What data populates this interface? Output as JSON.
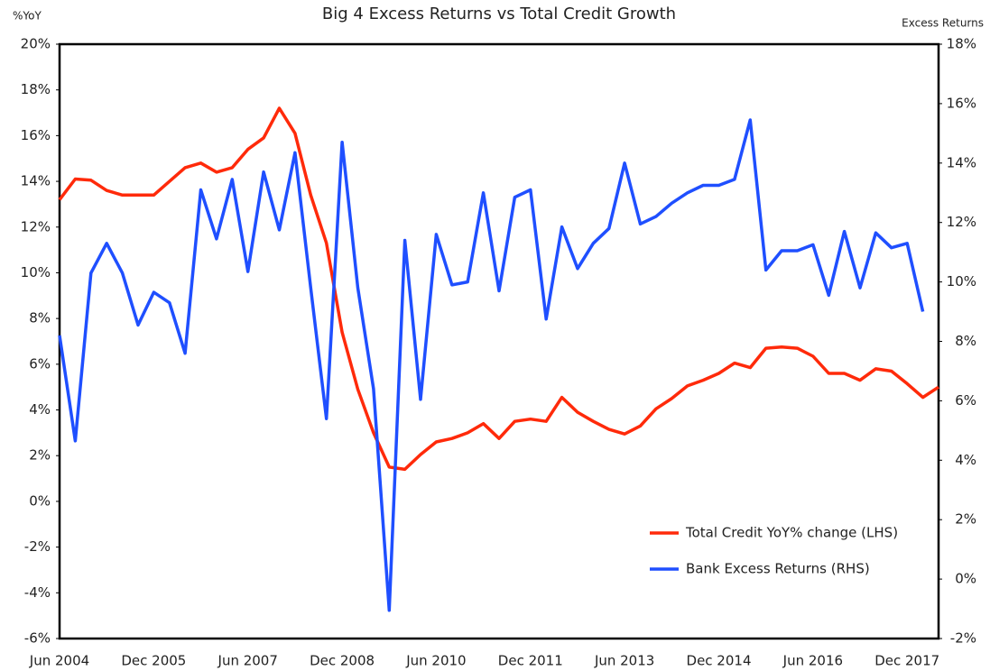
{
  "chart_data": {
    "type": "line",
    "title": "Big 4 Excess Returns vs Total Credit Growth",
    "y_label": "%YoY",
    "y2_label": "Excess Returns",
    "categories": [
      "Jun 2004",
      null,
      null,
      null,
      null,
      null,
      "Dec 2005",
      null,
      null,
      null,
      null,
      null,
      "Jun 2007",
      null,
      null,
      null,
      null,
      null,
      "Dec 2008",
      null,
      null,
      null,
      null,
      null,
      "Jun 2010",
      null,
      null,
      null,
      null,
      null,
      "Dec 2011",
      null,
      null,
      null,
      null,
      null,
      "Jun 2013",
      null,
      null,
      null,
      null,
      null,
      "Dec 2014",
      null,
      null,
      null,
      null,
      null,
      "Jun 2016",
      null,
      null,
      null,
      null,
      null,
      "Dec 2017",
      null,
      null
    ],
    "series": [
      {
        "name": "Total Credit YoY% change (LHS)",
        "color": "#ff2a0a",
        "axis": "y",
        "values": [
          13.2,
          14.1,
          14.05,
          13.6,
          13.4,
          13.4,
          13.4,
          14.0,
          14.6,
          14.8,
          14.4,
          14.6,
          15.4,
          15.9,
          17.2,
          16.1,
          13.4,
          11.3,
          7.4,
          4.9,
          3.0,
          1.5,
          1.4,
          2.05,
          2.6,
          2.75,
          3.0,
          3.4,
          2.75,
          3.5,
          3.6,
          3.5,
          4.55,
          3.9,
          3.5,
          3.15,
          2.95,
          3.3,
          4.05,
          4.5,
          5.05,
          5.3,
          5.6,
          6.05,
          5.85,
          6.7,
          6.75,
          6.7,
          6.35,
          5.6,
          5.6,
          5.3,
          5.8,
          5.7,
          5.15,
          4.55,
          5.0
        ]
      },
      {
        "name": "Bank Excess Returns (RHS)",
        "color": "#1f4fff",
        "axis": "y2",
        "values": [
          8.2,
          4.65,
          10.3,
          11.3,
          10.3,
          8.55,
          9.65,
          9.3,
          7.6,
          13.1,
          11.45,
          13.45,
          10.35,
          13.7,
          11.75,
          14.35,
          9.8,
          5.4,
          14.7,
          9.8,
          6.4,
          -1.05,
          11.4,
          6.05,
          11.6,
          9.9,
          10.0,
          13.0,
          9.7,
          12.85,
          13.1,
          8.75,
          11.85,
          10.45,
          11.3,
          11.8,
          14.0,
          11.95,
          12.2,
          12.65,
          13.0,
          13.25,
          13.25,
          13.45,
          15.45,
          10.4,
          11.05,
          11.05,
          11.25,
          9.55,
          11.7,
          9.8,
          11.65,
          11.15,
          11.3,
          9.0,
          null
        ]
      }
    ],
    "ylim": [
      -6,
      20
    ],
    "yticks": [
      {
        "value": -6,
        "label": "-6%"
      },
      {
        "value": -4,
        "label": "-4%"
      },
      {
        "value": -2,
        "label": "-2%"
      },
      {
        "value": 0,
        "label": "0%"
      },
      {
        "value": 2,
        "label": "2%"
      },
      {
        "value": 4,
        "label": "4%"
      },
      {
        "value": 6,
        "label": "6%"
      },
      {
        "value": 8,
        "label": "8%"
      },
      {
        "value": 10,
        "label": "10%"
      },
      {
        "value": 12,
        "label": "12%"
      },
      {
        "value": 14,
        "label": "14%"
      },
      {
        "value": 16,
        "label": "16%"
      },
      {
        "value": 18,
        "label": "18%"
      },
      {
        "value": 20,
        "label": "20%"
      }
    ],
    "y2lim": [
      -2,
      18
    ],
    "y2ticks": [
      {
        "value": -2,
        "label": "-2%"
      },
      {
        "value": 0,
        "label": "0%"
      },
      {
        "value": 2,
        "label": "2%"
      },
      {
        "value": 4,
        "label": "4%"
      },
      {
        "value": 6,
        "label": "6%"
      },
      {
        "value": 8,
        "label": "8%"
      },
      {
        "value": 10,
        "label": "10%"
      },
      {
        "value": 12,
        "label": "12%"
      },
      {
        "value": 14,
        "label": "14%"
      },
      {
        "value": 16,
        "label": "16%"
      },
      {
        "value": 18,
        "label": "18%"
      }
    ],
    "grid": false,
    "legend": "lower right"
  }
}
